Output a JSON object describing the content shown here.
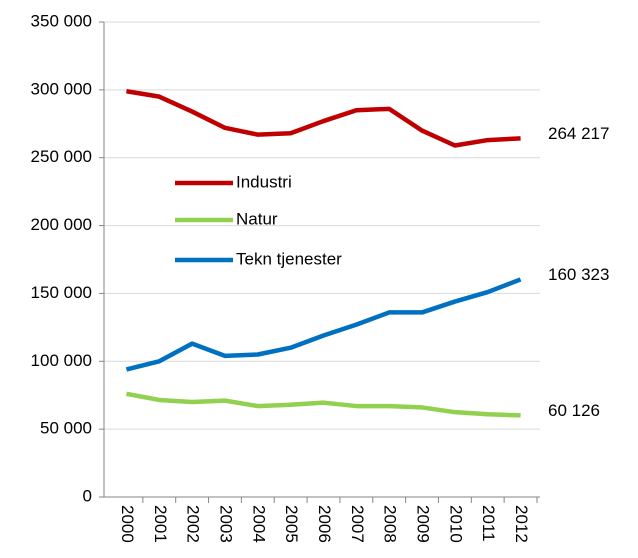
{
  "chart_data": {
    "type": "line",
    "categories": [
      "2000",
      "2001",
      "2002",
      "2003",
      "2004",
      "2005",
      "2006",
      "2007",
      "2008",
      "2009",
      "2010",
      "2011",
      "2012"
    ],
    "series": [
      {
        "name": "Industri",
        "color": "#c00000",
        "values": [
          299000,
          295000,
          284000,
          272000,
          267000,
          268000,
          277000,
          285000,
          286000,
          270000,
          259000,
          263000,
          264217
        ],
        "value_labels": [
          null,
          null,
          null,
          null,
          null,
          null,
          null,
          null,
          null,
          null,
          null,
          null,
          "264 217"
        ]
      },
      {
        "name": "Natur",
        "color": "#92d050",
        "values": [
          76000,
          71500,
          70000,
          71000,
          67000,
          68000,
          69500,
          67000,
          67000,
          66000,
          62500,
          61000,
          60126
        ],
        "value_labels": [
          null,
          null,
          null,
          null,
          null,
          null,
          null,
          null,
          null,
          null,
          null,
          null,
          "60 126"
        ]
      },
      {
        "name": "Tekn tjenester",
        "color": "#0070c0",
        "values": [
          94000,
          100000,
          113000,
          104000,
          105000,
          110000,
          119000,
          127000,
          136000,
          136000,
          144000,
          151000,
          160323
        ],
        "value_labels": [
          null,
          null,
          null,
          null,
          null,
          null,
          null,
          null,
          null,
          null,
          null,
          null,
          "160 323"
        ]
      }
    ],
    "ylim": [
      0,
      350000
    ],
    "yticks": [
      {
        "value": 0,
        "label": "0"
      },
      {
        "value": 50000,
        "label": "50 000"
      },
      {
        "value": 100000,
        "label": "100 000"
      },
      {
        "value": 150000,
        "label": "150 000"
      },
      {
        "value": 200000,
        "label": "200 000"
      },
      {
        "value": 250000,
        "label": "250 000"
      },
      {
        "value": 300000,
        "label": "300 000"
      },
      {
        "value": 350000,
        "label": "350 000"
      }
    ],
    "grid": true,
    "legend": "inside"
  }
}
